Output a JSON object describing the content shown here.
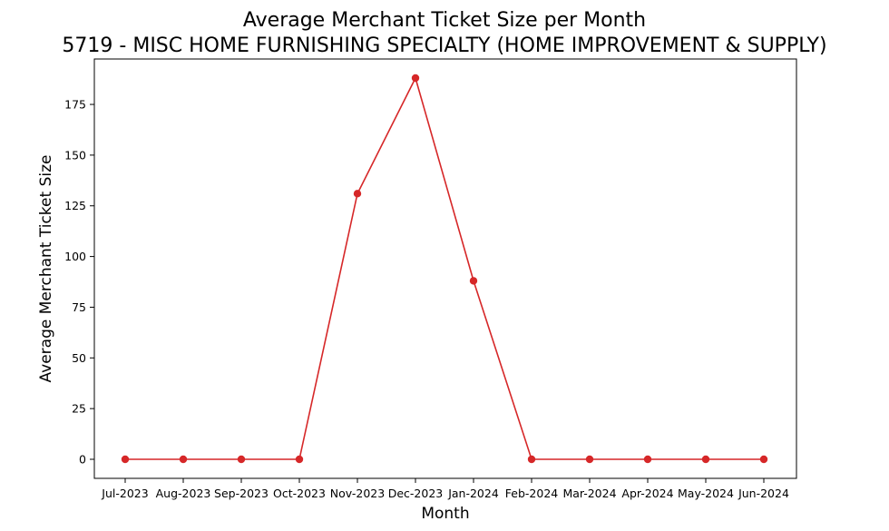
{
  "chart_data": {
    "type": "line",
    "title": "Average Merchant Ticket Size per Month",
    "subtitle": "5719 - MISC HOME FURNISHING SPECIALTY (HOME IMPROVEMENT & SUPPLY)",
    "xlabel": "Month",
    "ylabel": "Average Merchant Ticket Size",
    "categories": [
      "Jul-2023",
      "Aug-2023",
      "Sep-2023",
      "Oct-2023",
      "Nov-2023",
      "Dec-2023",
      "Jan-2024",
      "Feb-2024",
      "Mar-2024",
      "Apr-2024",
      "May-2024",
      "Jun-2024"
    ],
    "values": [
      0,
      0,
      0,
      0,
      131,
      188,
      88,
      0,
      0,
      0,
      0,
      0
    ],
    "ylim": [
      -9.4,
      197.4
    ],
    "yticks": [
      0,
      25,
      50,
      75,
      100,
      125,
      150,
      175
    ],
    "grid": false,
    "legend": false,
    "color": "#d62728"
  }
}
